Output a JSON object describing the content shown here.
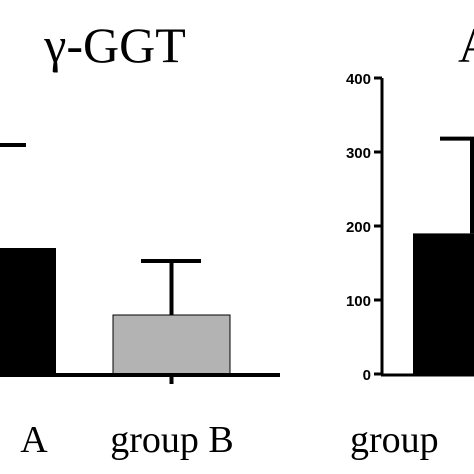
{
  "chart_data": [
    {
      "type": "bar",
      "title": "γ-GGT",
      "categories": [
        "A",
        "group B"
      ],
      "values": [
        null,
        null
      ],
      "error_bar_upper": [
        null,
        null
      ],
      "colors": [
        "#000000",
        "#b3b3b3"
      ],
      "grid": false
    },
    {
      "type": "bar",
      "title": "A",
      "categories": [
        "group"
      ],
      "values": [
        190
      ],
      "error_bar_upper": [
        318
      ],
      "ylim": [
        0,
        400
      ],
      "yticks": [
        0,
        100,
        200,
        300,
        400
      ],
      "ytick_labels": [
        "0",
        "100",
        "200",
        "300",
        "400"
      ],
      "colors": [
        "#000000"
      ],
      "grid": false
    }
  ]
}
